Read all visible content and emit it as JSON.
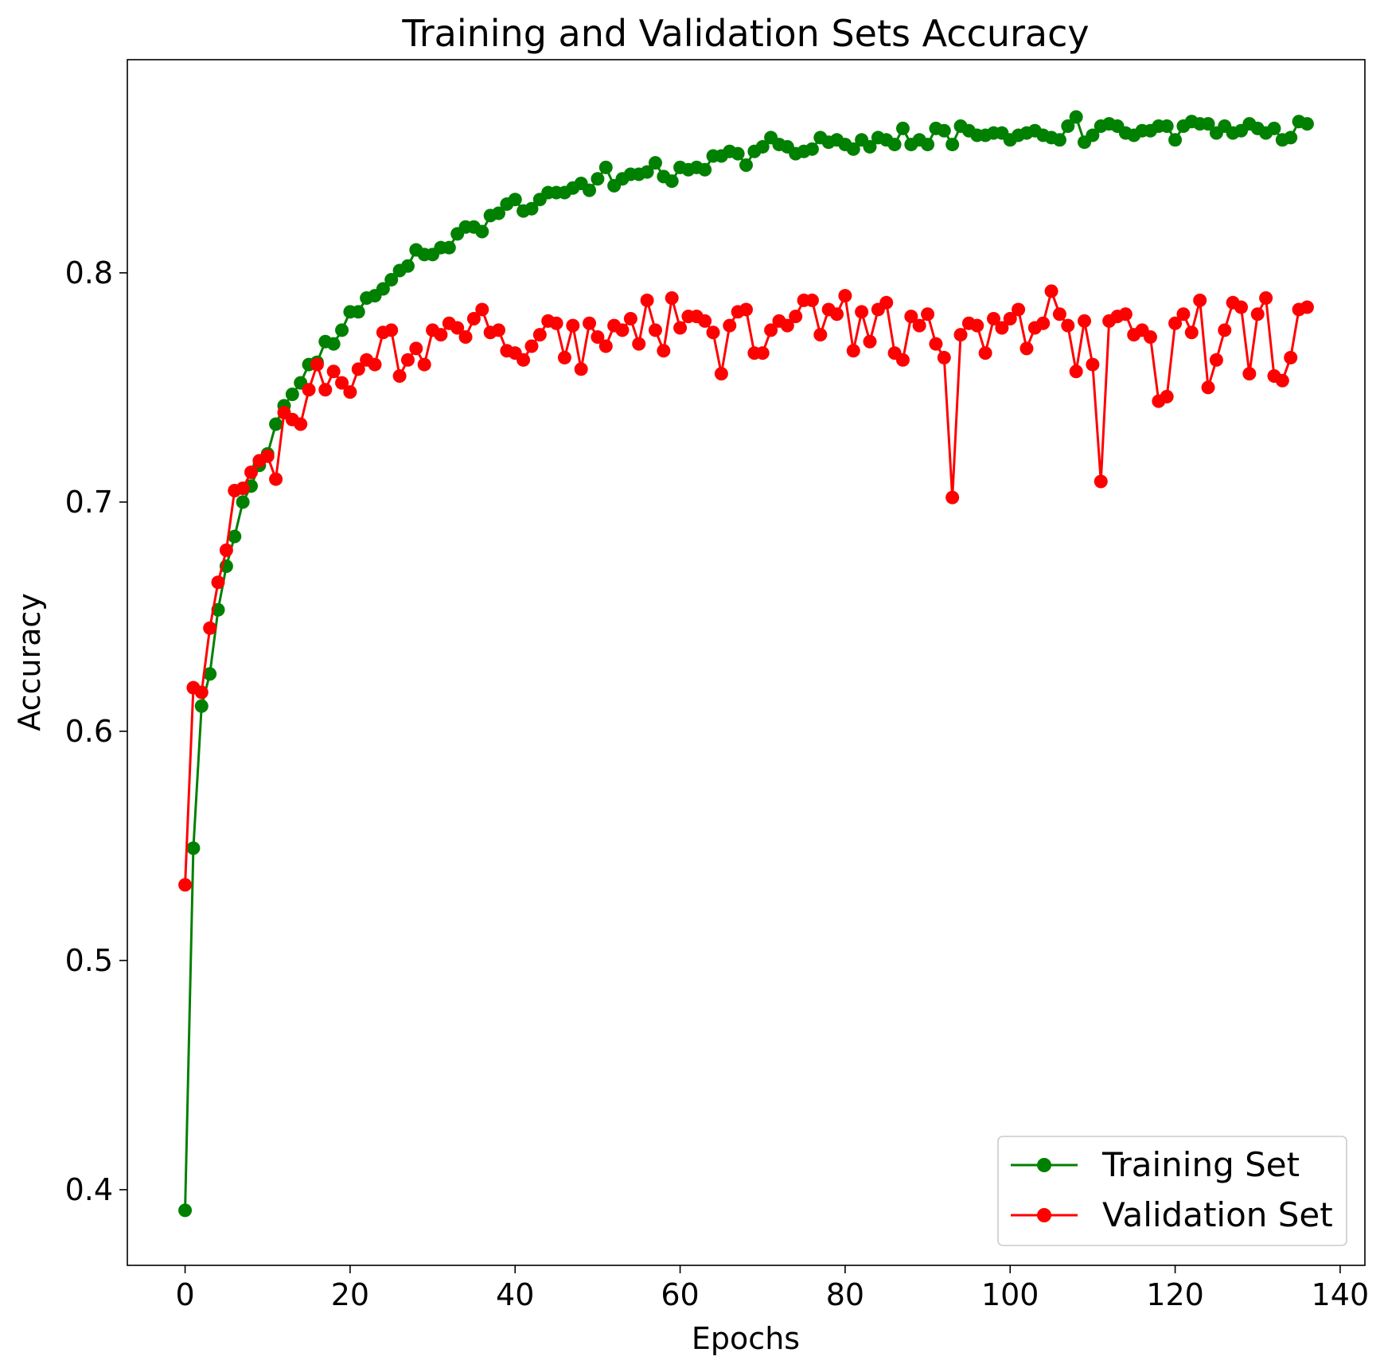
{
  "chart_data": {
    "type": "line",
    "title": "Training and Validation Sets Accuracy",
    "xlabel": "Epochs",
    "ylabel": "Accuracy",
    "xlim": [
      -7,
      143
    ],
    "ylim": [
      0.367,
      0.893
    ],
    "xticks": [
      0,
      20,
      40,
      60,
      80,
      100,
      120,
      140
    ],
    "yticks": [
      0.4,
      0.5,
      0.6,
      0.7,
      0.8
    ],
    "ytick_labels": [
      "0.4",
      "0.5",
      "0.6",
      "0.7",
      "0.8"
    ],
    "grid": false,
    "legend_position": "lower-right",
    "series": [
      {
        "name": "Training Set",
        "color": "#008000",
        "marker": "circle",
        "x_start": 0,
        "values": [
          0.391,
          0.549,
          0.611,
          0.625,
          0.653,
          0.672,
          0.685,
          0.7,
          0.707,
          0.716,
          0.721,
          0.734,
          0.742,
          0.747,
          0.752,
          0.76,
          0.761,
          0.77,
          0.769,
          0.775,
          0.783,
          0.783,
          0.789,
          0.79,
          0.793,
          0.797,
          0.801,
          0.803,
          0.81,
          0.808,
          0.808,
          0.811,
          0.811,
          0.817,
          0.82,
          0.82,
          0.818,
          0.825,
          0.826,
          0.83,
          0.832,
          0.827,
          0.828,
          0.832,
          0.835,
          0.835,
          0.835,
          0.837,
          0.839,
          0.836,
          0.841,
          0.846,
          0.838,
          0.841,
          0.843,
          0.843,
          0.844,
          0.848,
          0.842,
          0.84,
          0.846,
          0.845,
          0.846,
          0.845,
          0.851,
          0.851,
          0.853,
          0.852,
          0.847,
          0.853,
          0.855,
          0.859,
          0.856,
          0.855,
          0.852,
          0.853,
          0.854,
          0.859,
          0.857,
          0.858,
          0.856,
          0.854,
          0.858,
          0.855,
          0.859,
          0.858,
          0.856,
          0.863,
          0.856,
          0.858,
          0.856,
          0.863,
          0.862,
          0.856,
          0.864,
          0.862,
          0.86,
          0.86,
          0.861,
          0.861,
          0.858,
          0.86,
          0.861,
          0.862,
          0.86,
          0.859,
          0.858,
          0.864,
          0.868,
          0.857,
          0.86,
          0.864,
          0.865,
          0.864,
          0.861,
          0.86,
          0.862,
          0.862,
          0.864,
          0.864,
          0.858,
          0.864,
          0.866,
          0.865,
          0.865,
          0.861,
          0.864,
          0.861,
          0.862,
          0.865,
          0.863,
          0.861,
          0.863,
          0.858,
          0.859,
          0.866,
          0.865
        ]
      },
      {
        "name": "Validation Set",
        "color": "#ff0000",
        "marker": "circle",
        "x_start": 0,
        "values": [
          0.533,
          0.619,
          0.617,
          0.645,
          0.665,
          0.679,
          0.705,
          0.706,
          0.713,
          0.718,
          0.72,
          0.71,
          0.739,
          0.736,
          0.734,
          0.749,
          0.76,
          0.749,
          0.757,
          0.752,
          0.748,
          0.758,
          0.762,
          0.76,
          0.774,
          0.775,
          0.755,
          0.762,
          0.767,
          0.76,
          0.775,
          0.773,
          0.778,
          0.776,
          0.772,
          0.78,
          0.784,
          0.774,
          0.775,
          0.766,
          0.765,
          0.762,
          0.768,
          0.773,
          0.779,
          0.778,
          0.763,
          0.777,
          0.758,
          0.778,
          0.772,
          0.768,
          0.777,
          0.775,
          0.78,
          0.769,
          0.788,
          0.775,
          0.766,
          0.789,
          0.776,
          0.781,
          0.781,
          0.779,
          0.774,
          0.756,
          0.777,
          0.783,
          0.784,
          0.765,
          0.765,
          0.775,
          0.779,
          0.777,
          0.781,
          0.788,
          0.788,
          0.773,
          0.784,
          0.782,
          0.79,
          0.766,
          0.783,
          0.77,
          0.784,
          0.787,
          0.765,
          0.762,
          0.781,
          0.777,
          0.782,
          0.769,
          0.763,
          0.702,
          0.773,
          0.778,
          0.777,
          0.765,
          0.78,
          0.776,
          0.78,
          0.784,
          0.767,
          0.776,
          0.778,
          0.792,
          0.782,
          0.777,
          0.757,
          0.779,
          0.76,
          0.709,
          0.779,
          0.781,
          0.782,
          0.773,
          0.775,
          0.772,
          0.744,
          0.746,
          0.778,
          0.782,
          0.774,
          0.788,
          0.75,
          0.762,
          0.775,
          0.787,
          0.785,
          0.756,
          0.782,
          0.789,
          0.755,
          0.753,
          0.763,
          0.784,
          0.785
        ]
      }
    ]
  }
}
